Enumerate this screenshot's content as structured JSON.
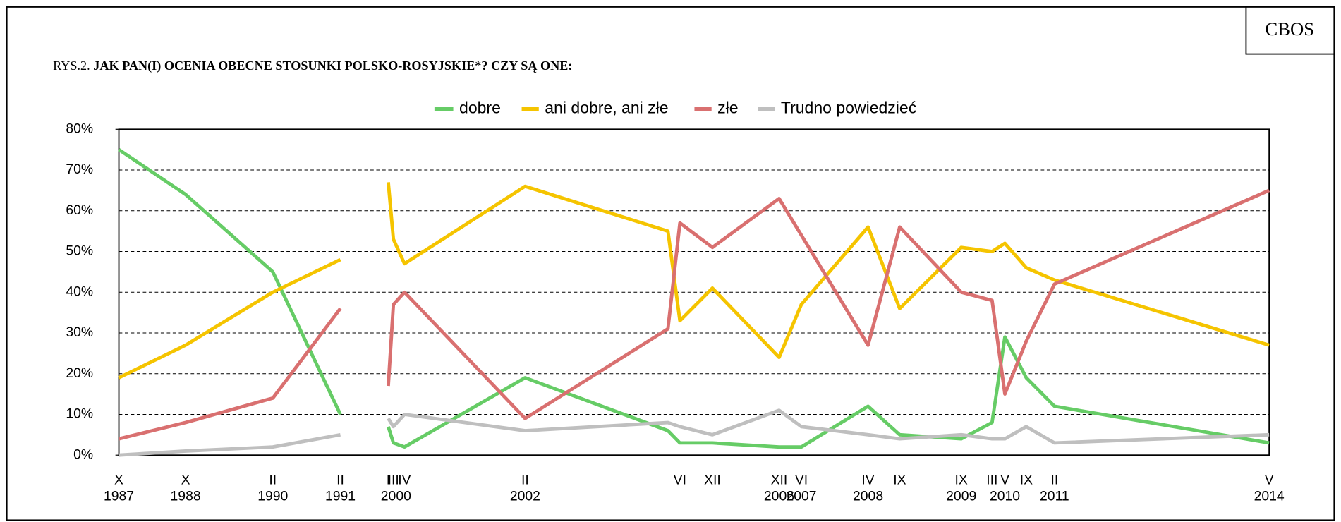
{
  "badge": "CBOS",
  "chart_data": {
    "type": "line",
    "title_prefix": "RYS.2.",
    "title": "JAK PAN(I) OCENIA OBECNE STOSUNKI POLSKO-ROSYJSKIE*? CZY SĄ ONE:",
    "categories": [
      "X",
      "X",
      "II",
      "II",
      null,
      "I",
      "III",
      "IV",
      "II",
      null,
      "VI",
      "XII",
      "XII",
      "VI",
      "IV",
      "IX",
      "IX",
      "III",
      "V",
      "IX",
      "II",
      "V"
    ],
    "category_years": [
      "1987",
      "1988",
      "1990",
      "1991",
      null,
      null,
      "2000",
      null,
      "2002",
      null,
      null,
      null,
      "2006",
      "2007",
      "2008",
      null,
      "2009",
      null,
      "2010",
      null,
      "2011",
      "2014"
    ],
    "series": [
      {
        "name": "dobre",
        "color": "#66cc66",
        "values": [
          75,
          64,
          45,
          10,
          null,
          7,
          3,
          2,
          19,
          6,
          3,
          3,
          2,
          2,
          12,
          5,
          4,
          8,
          29,
          19,
          12,
          3
        ]
      },
      {
        "name": "ani dobre, ani złe",
        "color": "#f5c400",
        "values": [
          19,
          27,
          40,
          48,
          null,
          67,
          53,
          47,
          66,
          55,
          33,
          41,
          24,
          37,
          56,
          36,
          51,
          50,
          52,
          46,
          43,
          27
        ]
      },
      {
        "name": "złe",
        "color": "#d97070",
        "values": [
          4,
          8,
          14,
          36,
          null,
          17,
          37,
          40,
          9,
          31,
          57,
          51,
          63,
          54,
          27,
          56,
          40,
          38,
          15,
          28,
          42,
          65
        ]
      },
      {
        "name": "Trudno powiedzieć",
        "color": "#bfbfbf",
        "values": [
          0,
          1,
          2,
          5,
          null,
          9,
          7,
          10,
          6,
          8,
          7,
          5,
          11,
          7,
          5,
          4,
          5,
          4,
          4,
          7,
          3,
          5
        ]
      }
    ],
    "ylim": [
      0,
      80
    ],
    "yticks": [
      {
        "value": 0,
        "label": "0%"
      },
      {
        "value": 10,
        "label": "10%"
      },
      {
        "value": 20,
        "label": "20%"
      },
      {
        "value": 30,
        "label": "30%"
      },
      {
        "value": 40,
        "label": "40%"
      },
      {
        "value": 50,
        "label": "50%"
      },
      {
        "value": 60,
        "label": "60%"
      },
      {
        "value": 70,
        "label": "70%"
      },
      {
        "value": 80,
        "label": "80%"
      }
    ],
    "grid": true,
    "legend": "top"
  }
}
